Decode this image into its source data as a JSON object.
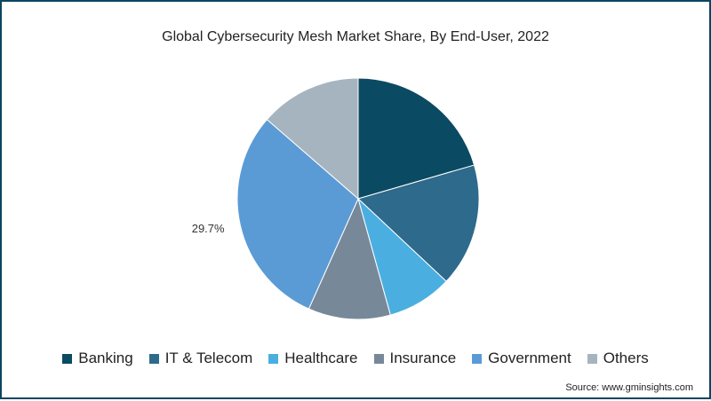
{
  "title": "Global Cybersecurity Mesh Market Share, By End-User, 2022",
  "source": "Source: www.gminsights.com",
  "chart_data": {
    "type": "pie",
    "title": "Global Cybersecurity Mesh Market Share, By End-User, 2022",
    "start_angle_deg": 0,
    "direction": "clockwise",
    "legend_position": "bottom",
    "slices": [
      {
        "label": "Banking",
        "value": 20.5,
        "color": "#0b4a63"
      },
      {
        "label": "IT & Telecom",
        "value": 16.5,
        "color": "#2e6a8c"
      },
      {
        "label": "Healthcare",
        "value": 8.7,
        "color": "#4aafe0"
      },
      {
        "label": "Insurance",
        "value": 11.0,
        "color": "#778899"
      },
      {
        "label": "Government",
        "value": 29.7,
        "color": "#5b9bd5",
        "data_label": "29.7%"
      },
      {
        "label": "Others",
        "value": 13.6,
        "color": "#a6b4bf"
      }
    ]
  }
}
